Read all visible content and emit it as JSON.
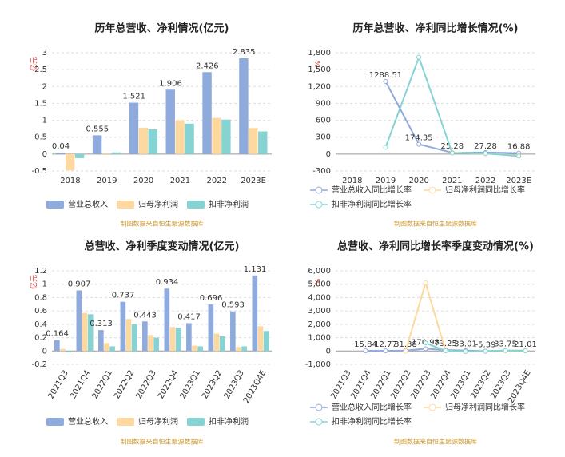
{
  "chart_data": [
    {
      "type": "bar",
      "title": "历年总营收、净利情况(亿元)",
      "y_label": "亿元",
      "source": "制图数据来自恒生聚源数据库",
      "categories": [
        "2018",
        "2019",
        "2020",
        "2021",
        "2022",
        "2023E"
      ],
      "ylim": [
        -0.5,
        3
      ],
      "yticks": [
        -0.5,
        0,
        0.5,
        1,
        1.5,
        2,
        2.5,
        3
      ],
      "grid": true,
      "series": [
        {
          "name": "营业总收入",
          "color": "#8faadc",
          "data_labels": true,
          "values": [
            0.04,
            0.555,
            1.521,
            1.906,
            2.426,
            2.835
          ]
        },
        {
          "name": "归母净利润",
          "color": "#fdd9a0",
          "values": [
            -0.48,
            0.03,
            0.78,
            1.0,
            1.07,
            0.77
          ]
        },
        {
          "name": "扣非净利润",
          "color": "#86d3d3",
          "values": [
            -0.12,
            0.05,
            0.73,
            0.9,
            1.02,
            0.67
          ]
        }
      ]
    },
    {
      "type": "line",
      "title": "历年总营收、净利同比增长情况(%)",
      "y_label": "%",
      "source": "制图数据来自恒生聚源数据库",
      "categories": [
        "2018",
        "2019",
        "2020",
        "2021",
        "2022",
        "2023E"
      ],
      "ylim": [
        -300,
        1800
      ],
      "yticks": [
        -300,
        0,
        300,
        600,
        900,
        {
          "value": 1200,
          "label": "1,200"
        },
        {
          "value": 1500,
          "label": "1,500"
        },
        {
          "value": 1800,
          "label": "1,800"
        }
      ],
      "grid": true,
      "series": [
        {
          "name": "营业总收入同比增长率",
          "color": "#8faadc",
          "data_labels": true,
          "values": [
            null,
            1288.51,
            174.35,
            25.28,
            27.28,
            16.88
          ]
        },
        {
          "name": "归母净利润同比增长率",
          "color": "#fdd9a0",
          "values": [
            null,
            null,
            null,
            30,
            7,
            -28
          ]
        },
        {
          "name": "扣非净利润同比增长率",
          "color": "#86d3d3",
          "values": [
            null,
            120,
            1720,
            20,
            12,
            -35
          ]
        }
      ]
    },
    {
      "type": "bar",
      "title": "总营收、净利季度变动情况(亿元)",
      "y_label": "亿元",
      "source": "制图数据来自恒生聚源数据库",
      "categories": [
        "2021Q3",
        "2021Q4",
        "2022Q1",
        "2022Q2",
        "2022Q3",
        "2022Q4",
        "2023Q1",
        "2023Q2",
        "2023Q3",
        "2023Q4E"
      ],
      "ylim": [
        -0.2,
        1.2
      ],
      "yticks": [
        -0.2,
        0,
        0.2,
        0.4,
        0.6,
        0.8,
        1,
        1.2
      ],
      "grid": true,
      "series": [
        {
          "name": "营业总收入",
          "color": "#8faadc",
          "data_labels": true,
          "values": [
            0.164,
            0.907,
            0.313,
            0.737,
            0.443,
            0.934,
            0.417,
            0.696,
            0.593,
            1.131
          ]
        },
        {
          "name": "归母净利润",
          "color": "#fdd9a0",
          "values": [
            0.03,
            0.57,
            0.12,
            0.48,
            0.24,
            0.36,
            0.08,
            0.26,
            0.06,
            0.37
          ]
        },
        {
          "name": "扣非净利润",
          "color": "#86d3d3",
          "values": [
            -0.02,
            0.55,
            0.07,
            0.4,
            0.2,
            0.35,
            0.07,
            0.22,
            0.07,
            0.3
          ]
        }
      ]
    },
    {
      "type": "line",
      "title": "总营收、净利同比增长率季度变动情况(%)",
      "y_label": "%",
      "source": "制图数据来自恒生聚源数据库",
      "categories": [
        "2021Q3",
        "2021Q4",
        "2022Q1",
        "2022Q2",
        "2022Q3",
        "2022Q4",
        "2023Q1",
        "2023Q2",
        "2023Q3",
        "2023Q4E"
      ],
      "ylim": [
        -1000,
        6000
      ],
      "yticks": [
        {
          "value": -1000,
          "label": "-1,000"
        },
        0,
        {
          "value": 1000,
          "label": "1,000"
        },
        {
          "value": 2000,
          "label": "2,000"
        },
        {
          "value": 3000,
          "label": "3,000"
        },
        {
          "value": 4000,
          "label": "4,000"
        },
        {
          "value": 5000,
          "label": "5,000"
        },
        {
          "value": 6000,
          "label": "6,000"
        }
      ],
      "grid": true,
      "series": [
        {
          "name": "营业总收入同比增长率",
          "color": "#8faadc",
          "data_labels": true,
          "values": [
            null,
            15.84,
            12.77,
            31.38,
            170.98,
            73.25,
            33.01,
            -5.39,
            33.75,
            21.01
          ]
        },
        {
          "name": "归母净利润同比增长率",
          "color": "#fdd9a0",
          "values": [
            null,
            null,
            null,
            -20,
            5100,
            20,
            -50,
            -30,
            20,
            30
          ]
        },
        {
          "name": "扣非净利润同比增长率",
          "color": "#86d3d3",
          "values": [
            null,
            null,
            null,
            null,
            600,
            20,
            -40,
            -20,
            30,
            20
          ]
        }
      ]
    }
  ]
}
